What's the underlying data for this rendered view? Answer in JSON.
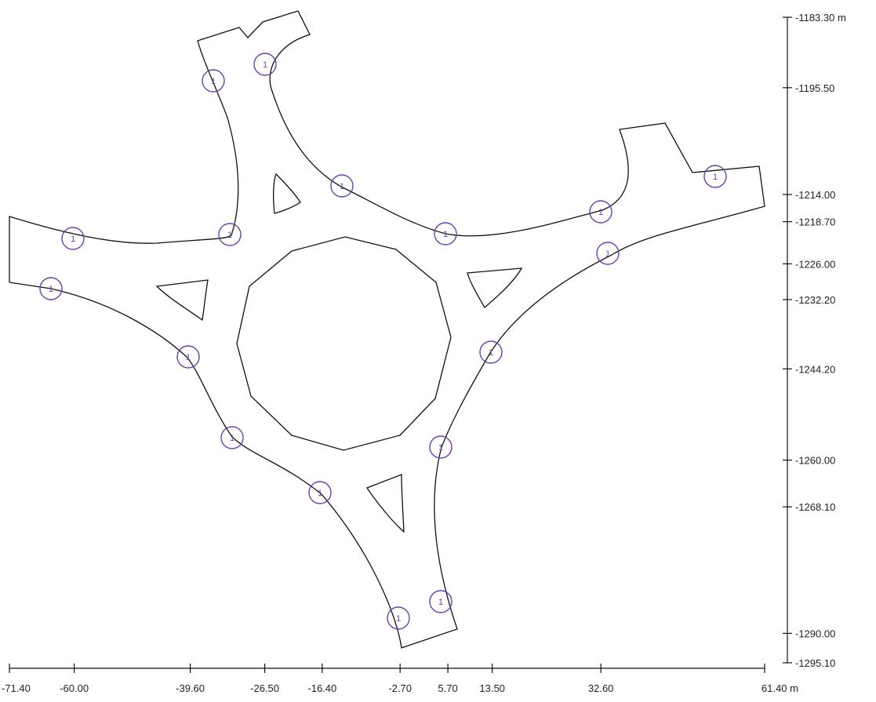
{
  "x_axis": {
    "unit": "m",
    "ticks": [
      {
        "value": -71.4,
        "label": "-71.40"
      },
      {
        "value": -60.0,
        "label": "-60.00"
      },
      {
        "value": -39.6,
        "label": "-39.60"
      },
      {
        "value": -26.5,
        "label": "-26.50"
      },
      {
        "value": -16.4,
        "label": "-16.40"
      },
      {
        "value": -2.7,
        "label": "-2.70"
      },
      {
        "value": 5.7,
        "label": "5.70"
      },
      {
        "value": 13.5,
        "label": "13.50"
      },
      {
        "value": 32.6,
        "label": "32.60"
      },
      {
        "value": 61.4,
        "label": "61.40 m"
      }
    ]
  },
  "y_axis": {
    "unit": "m",
    "ticks": [
      {
        "value": -1183.3,
        "label": "-1183.30 m"
      },
      {
        "value": -1195.5,
        "label": "-1195.50"
      },
      {
        "value": -1214.0,
        "label": "-1214.00"
      },
      {
        "value": -1218.7,
        "label": "-1218.70"
      },
      {
        "value": -1226.0,
        "label": "-1226.00"
      },
      {
        "value": -1232.2,
        "label": "-1232.20"
      },
      {
        "value": -1244.2,
        "label": "-1244.20"
      },
      {
        "value": -1260.0,
        "label": "-1260.00"
      },
      {
        "value": -1268.1,
        "label": "-1268.10"
      },
      {
        "value": -1290.0,
        "label": "-1290.00"
      },
      {
        "value": -1295.1,
        "label": "-1295.10"
      }
    ]
  },
  "markers": {
    "label": "1",
    "color": "#6a3fb5",
    "count": 18
  }
}
